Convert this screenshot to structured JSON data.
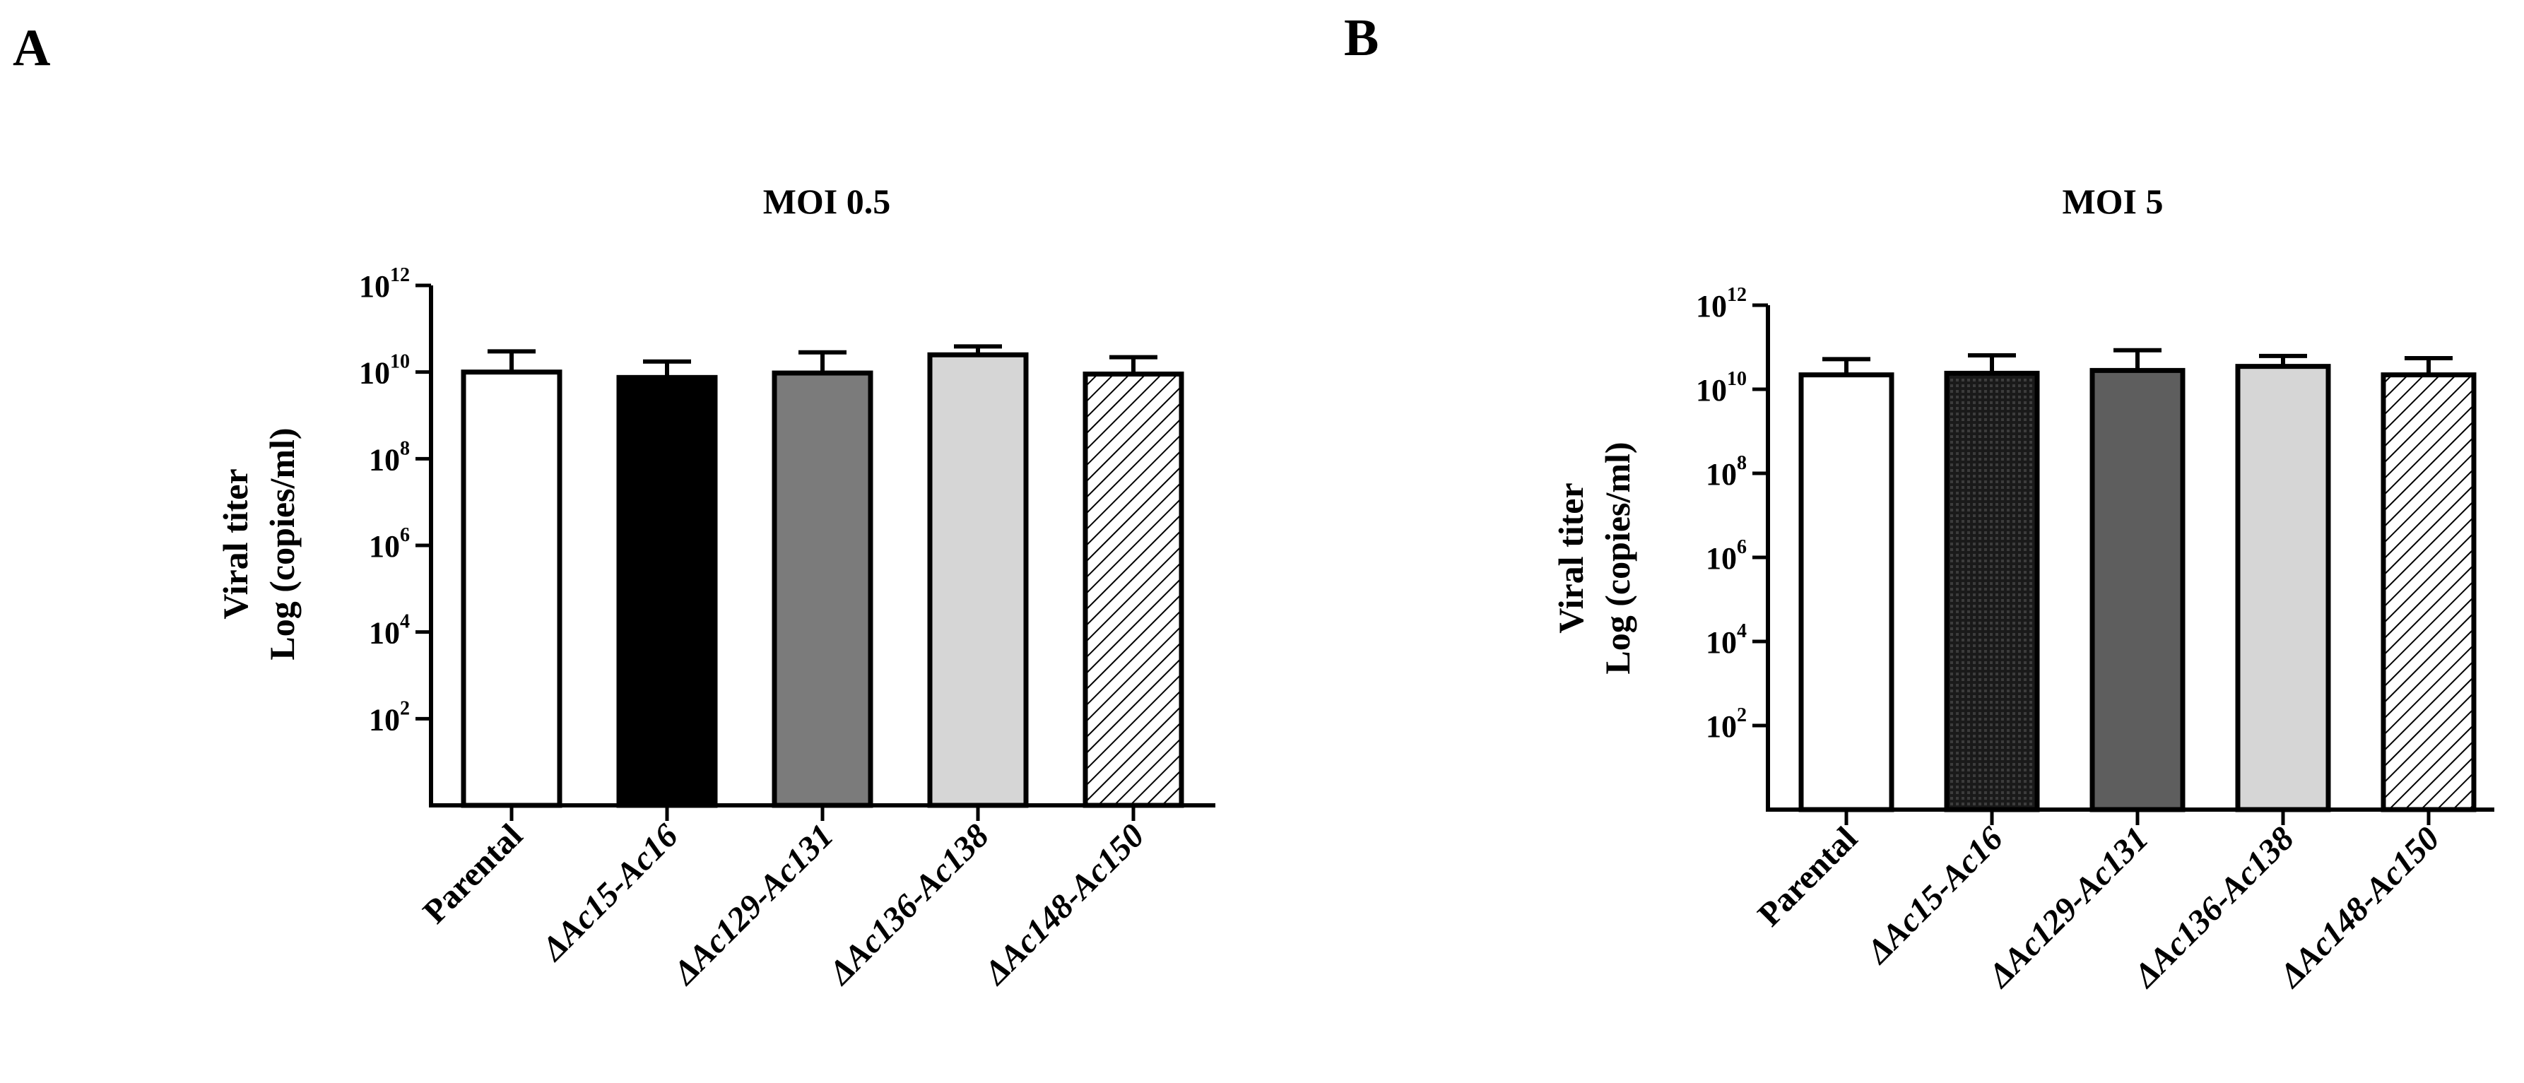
{
  "panels": [
    {
      "letter": "A"
    },
    {
      "letter": "B"
    }
  ],
  "chart_data": [
    {
      "type": "bar",
      "title": "MOI 0.5",
      "ylabel": [
        "Viral titer",
        "Log (copies/ml)"
      ],
      "yscale": "log",
      "ylim": [
        1,
        1000000000000.0
      ],
      "yticks": [
        {
          "base": "10",
          "exp": "12"
        },
        {
          "base": "10",
          "exp": "10"
        },
        {
          "base": "10",
          "exp": "8"
        },
        {
          "base": "10",
          "exp": "6"
        },
        {
          "base": "10",
          "exp": "4"
        },
        {
          "base": "10",
          "exp": "2"
        }
      ],
      "categories": [
        "Parental",
        "ΔAc15-Ac16",
        "ΔAc129-Ac131",
        "ΔAc136-Ac138",
        "ΔAc148-Ac150"
      ],
      "category_italic": [
        false,
        true,
        true,
        true,
        true
      ],
      "values": [
        10000000000.0,
        7500000000.0,
        9500000000.0,
        25000000000.0,
        9000000000.0
      ],
      "errors": [
        20000000000.0,
        10000000000.0,
        19000000000.0,
        14000000000.0,
        13000000000.0
      ],
      "fills": [
        "white",
        "black",
        "#7b7b7b",
        "#d6d6d6",
        "hatch"
      ]
    },
    {
      "type": "bar",
      "title": "MOI 5",
      "ylabel": [
        "Viral titer",
        "Log (copies/ml)"
      ],
      "yscale": "log",
      "ylim": [
        1,
        1000000000000.0
      ],
      "yticks": [
        {
          "base": "10",
          "exp": "12"
        },
        {
          "base": "10",
          "exp": "10"
        },
        {
          "base": "10",
          "exp": "8"
        },
        {
          "base": "10",
          "exp": "6"
        },
        {
          "base": "10",
          "exp": "4"
        },
        {
          "base": "10",
          "exp": "2"
        }
      ],
      "categories": [
        "Parental",
        "ΔAc15-Ac16",
        "ΔAc129-Ac131",
        "ΔAc136-Ac138",
        "ΔAc148-Ac150"
      ],
      "category_italic": [
        false,
        true,
        true,
        true,
        true
      ],
      "values": [
        22000000000.0,
        24000000000.0,
        28000000000.0,
        35000000000.0,
        22000000000.0
      ],
      "errors": [
        30000000000.0,
        40000000000.0,
        57000000000.0,
        27000000000.0,
        33000000000.0
      ],
      "fills": [
        "white",
        "dots",
        "#5e5e5e",
        "#d6d6d6",
        "hatch"
      ]
    }
  ]
}
